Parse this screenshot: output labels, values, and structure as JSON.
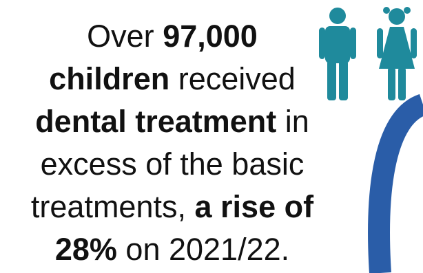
{
  "statement": {
    "line1": {
      "pre": "Over ",
      "bold": "97,000"
    },
    "line2": {
      "bold": "children",
      "post": " received"
    },
    "line3": {
      "bold": "dental treatment",
      "post": " in"
    },
    "line4": {
      "text": "excess of the basic"
    },
    "line5": {
      "pre": "treatments, ",
      "bold": "a rise of"
    },
    "line6": {
      "bold": "28%",
      "post": " on 2021/22."
    }
  },
  "graphic": {
    "icons": [
      "boy-icon",
      "girl-icon"
    ],
    "figure_color": "#1f8a9c",
    "arc_color": "#2a5da8"
  }
}
